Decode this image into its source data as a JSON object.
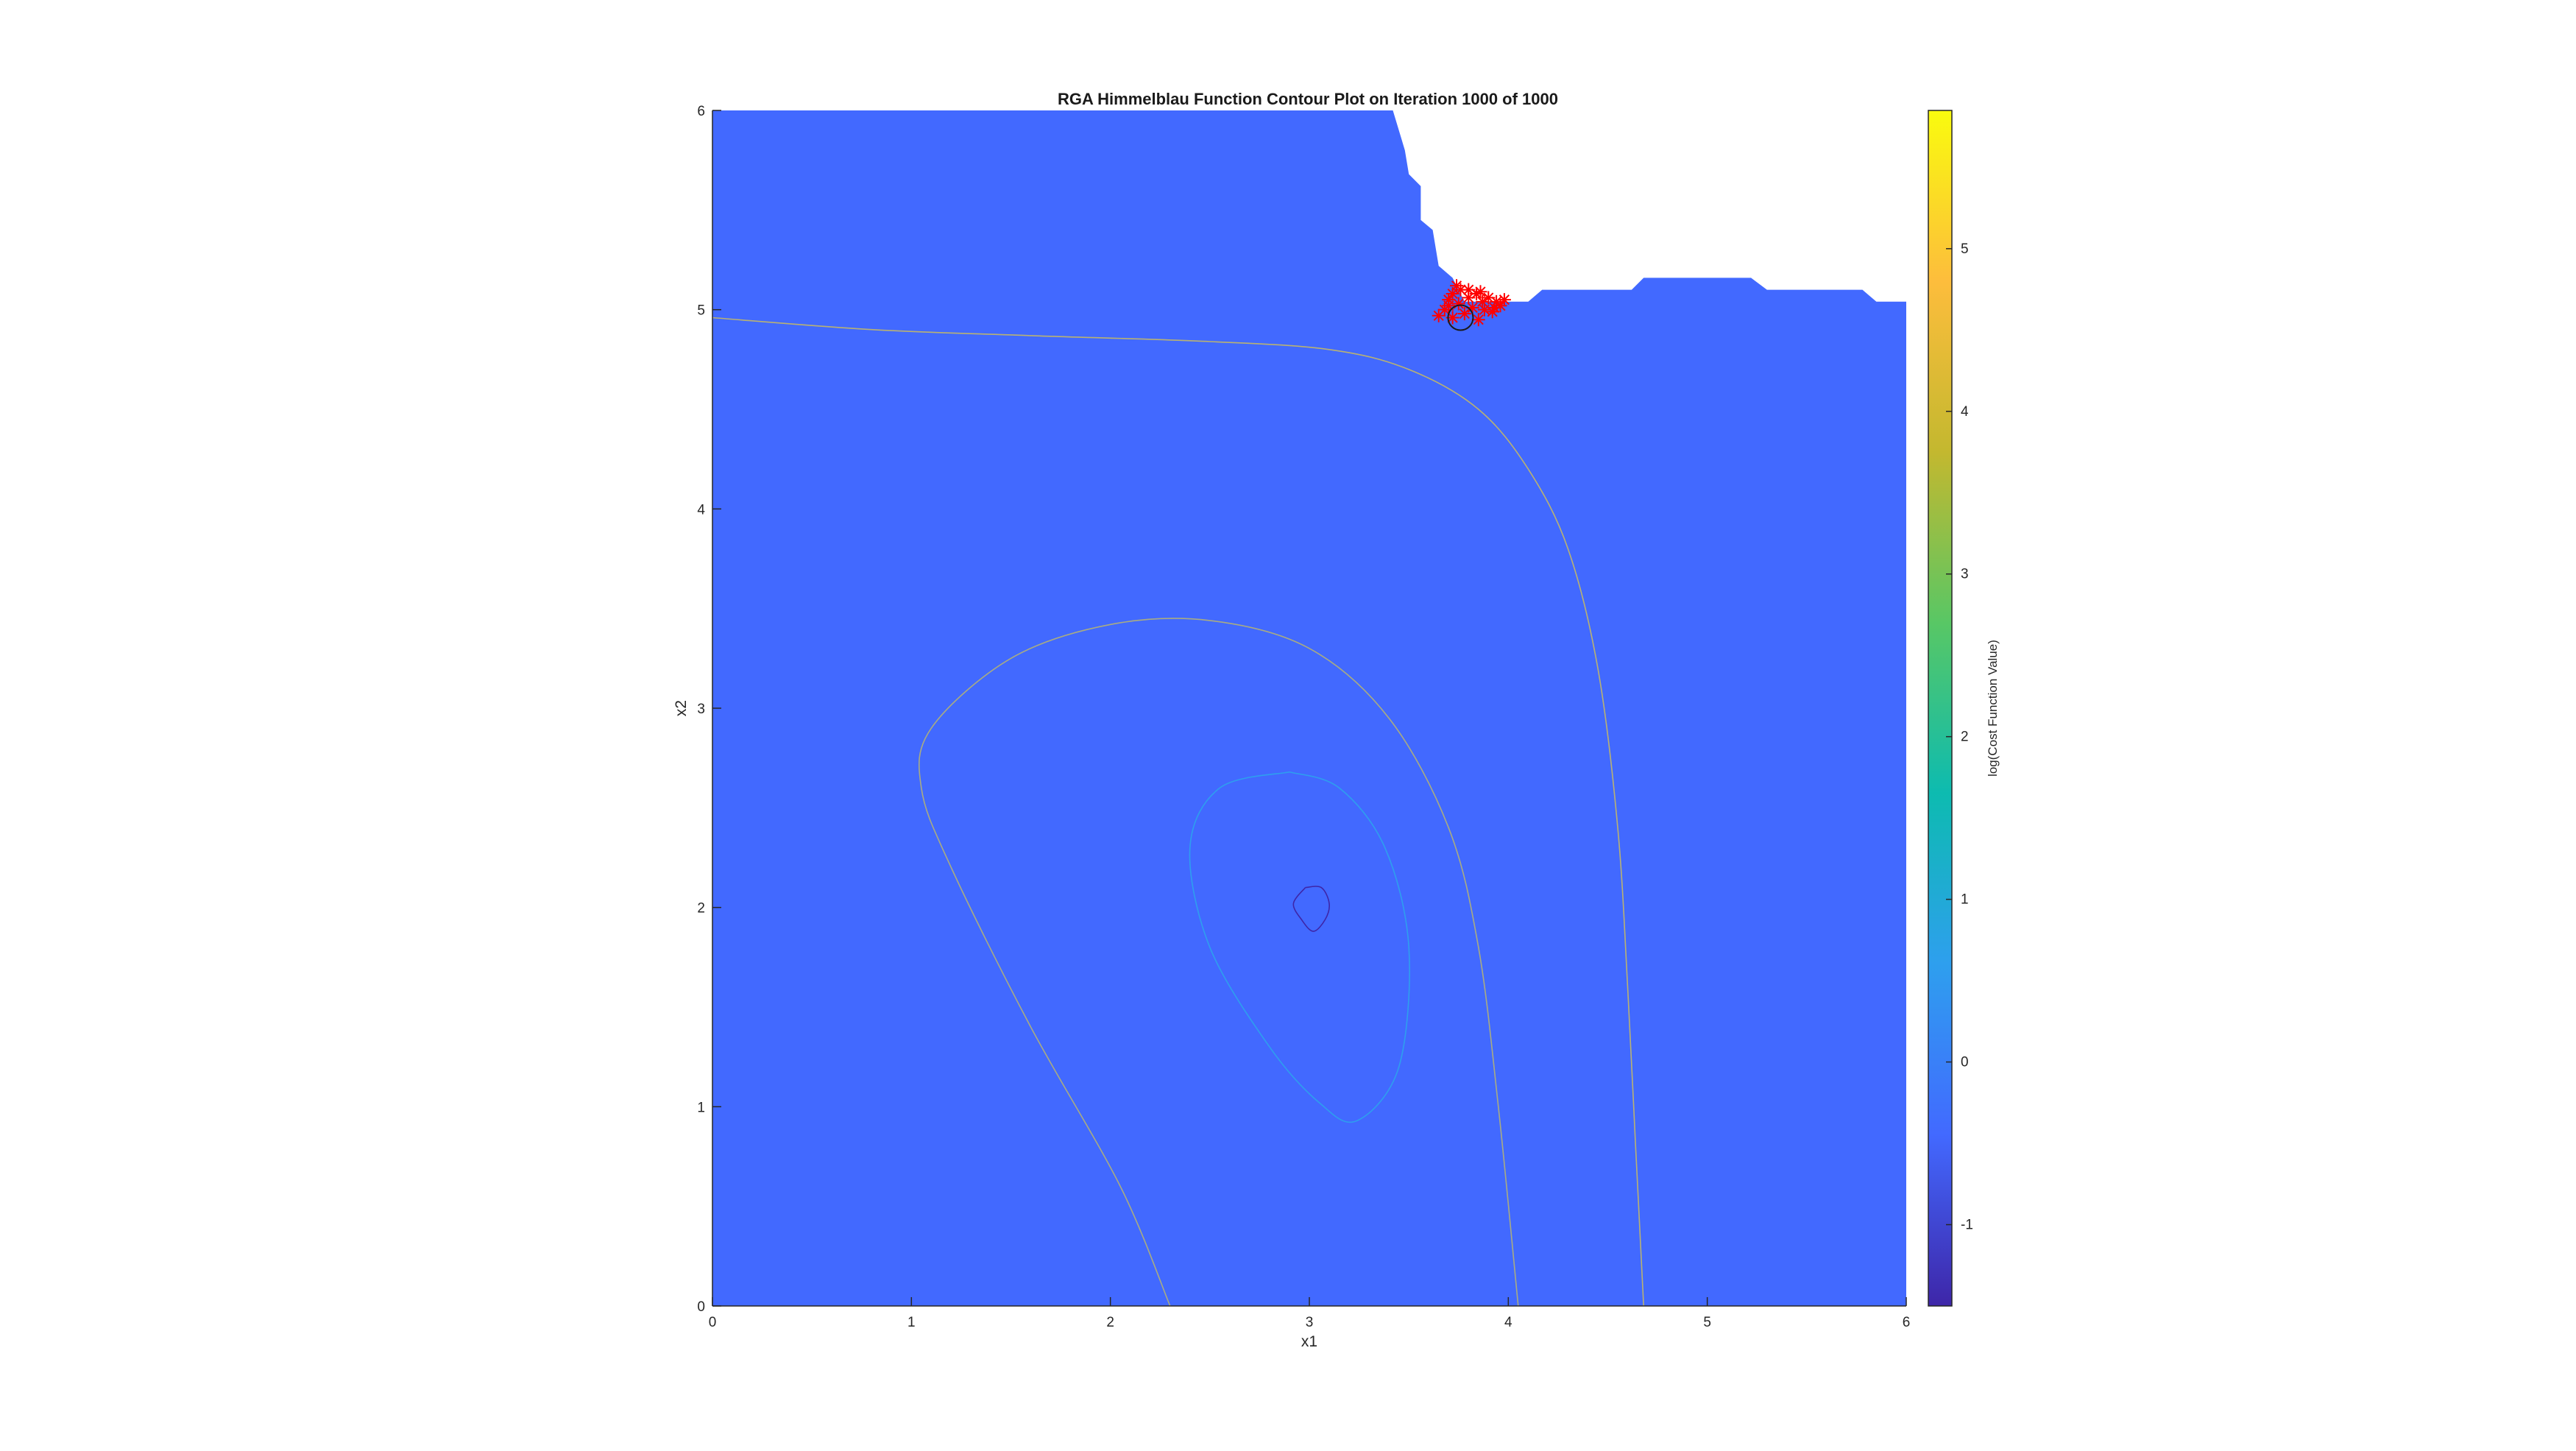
{
  "chart_data": {
    "type": "contour",
    "title": "RGA Himmelblau Function Contour Plot on Iteration 1000 of 1000",
    "xlabel": "x1",
    "ylabel": "x2",
    "xlim": [
      0,
      6
    ],
    "ylim": [
      0,
      6
    ],
    "xticks": [
      "0",
      "1",
      "2",
      "3",
      "4",
      "5",
      "6"
    ],
    "yticks": [
      "0",
      "1",
      "2",
      "3",
      "4",
      "5",
      "6"
    ],
    "fill_color": "#4269FF",
    "colorbar": {
      "label": "log(Cost Function Value)",
      "range": [
        -1.5,
        5.85
      ],
      "ticks": [
        "-1",
        "0",
        "1",
        "2",
        "3",
        "4",
        "5"
      ],
      "colormap": [
        "#3E26A8",
        "#4269FF",
        "#2E9FEE",
        "#0DBBB0",
        "#58C765",
        "#C3B82F",
        "#FDBD3C",
        "#F9FB0E"
      ]
    },
    "filled_region_boundary": [
      [
        0,
        0
      ],
      [
        6,
        0
      ],
      [
        6,
        5.04
      ],
      [
        5.85,
        5.04
      ],
      [
        5.78,
        5.1
      ],
      [
        5.3,
        5.1
      ],
      [
        5.22,
        5.16
      ],
      [
        4.68,
        5.16
      ],
      [
        4.62,
        5.1
      ],
      [
        4.17,
        5.1
      ],
      [
        4.1,
        5.04
      ],
      [
        3.78,
        5.04
      ],
      [
        3.72,
        5.16
      ],
      [
        3.65,
        5.22
      ],
      [
        3.62,
        5.4
      ],
      [
        3.56,
        5.45
      ],
      [
        3.56,
        5.62
      ],
      [
        3.5,
        5.68
      ],
      [
        3.48,
        5.8
      ],
      [
        3.42,
        6
      ],
      [
        0,
        6
      ]
    ],
    "contours": [
      {
        "level": "outer",
        "color": "#B9B272",
        "points": [
          [
            0,
            4.96
          ],
          [
            0.8,
            4.9
          ],
          [
            1.6,
            4.87
          ],
          [
            2.5,
            4.84
          ],
          [
            3.1,
            4.8
          ],
          [
            3.5,
            4.7
          ],
          [
            3.85,
            4.5
          ],
          [
            4.1,
            4.2
          ],
          [
            4.3,
            3.8
          ],
          [
            4.45,
            3.2
          ],
          [
            4.55,
            2.4
          ],
          [
            4.6,
            1.6
          ],
          [
            4.64,
            0.8
          ],
          [
            4.68,
            0
          ]
        ]
      },
      {
        "level": "middle",
        "color": "#A9AC82",
        "points": [
          [
            2.3,
            0
          ],
          [
            2.05,
            0.6
          ],
          [
            1.6,
            1.4
          ],
          [
            1.2,
            2.2
          ],
          [
            1.05,
            2.6
          ],
          [
            1.1,
            2.9
          ],
          [
            1.5,
            3.25
          ],
          [
            2.0,
            3.42
          ],
          [
            2.5,
            3.44
          ],
          [
            3.0,
            3.3
          ],
          [
            3.4,
            2.95
          ],
          [
            3.7,
            2.4
          ],
          [
            3.85,
            1.8
          ],
          [
            3.95,
            1.0
          ],
          [
            4.05,
            0
          ]
        ]
      },
      {
        "level": "inner",
        "color": "#2E9FEE",
        "points": [
          [
            2.9,
            2.68
          ],
          [
            2.55,
            2.6
          ],
          [
            2.4,
            2.3
          ],
          [
            2.5,
            1.8
          ],
          [
            2.8,
            1.3
          ],
          [
            3.05,
            1.02
          ],
          [
            3.24,
            0.93
          ],
          [
            3.45,
            1.2
          ],
          [
            3.5,
            1.8
          ],
          [
            3.38,
            2.3
          ],
          [
            3.15,
            2.6
          ],
          [
            2.9,
            2.68
          ]
        ]
      },
      {
        "level": "minimum",
        "color": "#3E26A8",
        "points": [
          [
            2.98,
            2.1
          ],
          [
            3.06,
            2.1
          ],
          [
            3.1,
            2.02
          ],
          [
            3.08,
            1.94
          ],
          [
            3.02,
            1.88
          ],
          [
            2.96,
            1.94
          ],
          [
            2.92,
            2.02
          ],
          [
            2.98,
            2.1
          ]
        ]
      }
    ],
    "population": {
      "marker": "*",
      "color": "#FF0000",
      "center": [
        3.78,
        5.02
      ],
      "points": [
        [
          3.65,
          4.97
        ],
        [
          3.68,
          5.0
        ],
        [
          3.7,
          5.05
        ],
        [
          3.72,
          5.08
        ],
        [
          3.72,
          4.96
        ],
        [
          3.75,
          5.03
        ],
        [
          3.76,
          5.1
        ],
        [
          3.78,
          4.98
        ],
        [
          3.8,
          5.06
        ],
        [
          3.82,
          5.01
        ],
        [
          3.84,
          5.08
        ],
        [
          3.85,
          4.95
        ],
        [
          3.87,
          5.04
        ],
        [
          3.88,
          5.0
        ],
        [
          3.9,
          5.06
        ],
        [
          3.92,
          4.99
        ],
        [
          3.94,
          5.04
        ],
        [
          3.96,
          5.02
        ],
        [
          3.98,
          5.05
        ],
        [
          3.74,
          5.12
        ],
        [
          3.8,
          5.1
        ],
        [
          3.7,
          5.02
        ],
        [
          3.86,
          5.09
        ],
        [
          3.93,
          5.01
        ]
      ],
      "best_circle": [
        3.76,
        4.96
      ]
    }
  }
}
